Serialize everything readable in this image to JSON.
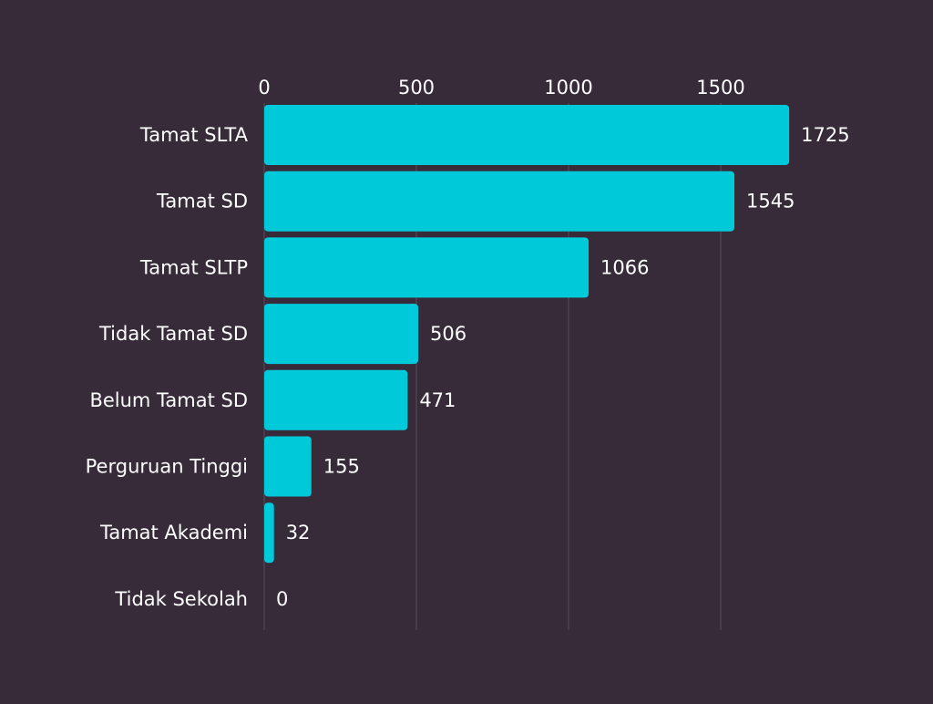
{
  "chart_data": {
    "type": "bar",
    "orientation": "horizontal",
    "title": "",
    "xlabel": "",
    "ylabel": "",
    "xlim": [
      0,
      1725
    ],
    "x_ticks": [
      0,
      500,
      1000,
      1500
    ],
    "x_tick_labels": [
      "0",
      "500",
      "1000",
      "1500"
    ],
    "x_axis_position": "top",
    "grid": true,
    "legend": "none",
    "categories": [
      "Tamat SLTA",
      "Tamat SD",
      "Tamat SLTP",
      "Tidak Tamat SD",
      "Belum Tamat SD",
      "Perguruan Tinggi",
      "Tamat Akademi",
      "Tidak Sekolah"
    ],
    "values": [
      1725,
      1545,
      1066,
      506,
      471,
      155,
      32,
      0
    ],
    "data_labels": [
      "1725",
      "1545",
      "1066",
      "506",
      "471",
      "155",
      "32",
      "0"
    ],
    "colors": {
      "background": "#372b3a",
      "bar": "#00c9da",
      "grid": "#5a4e5d",
      "text": "#ffffff"
    }
  }
}
